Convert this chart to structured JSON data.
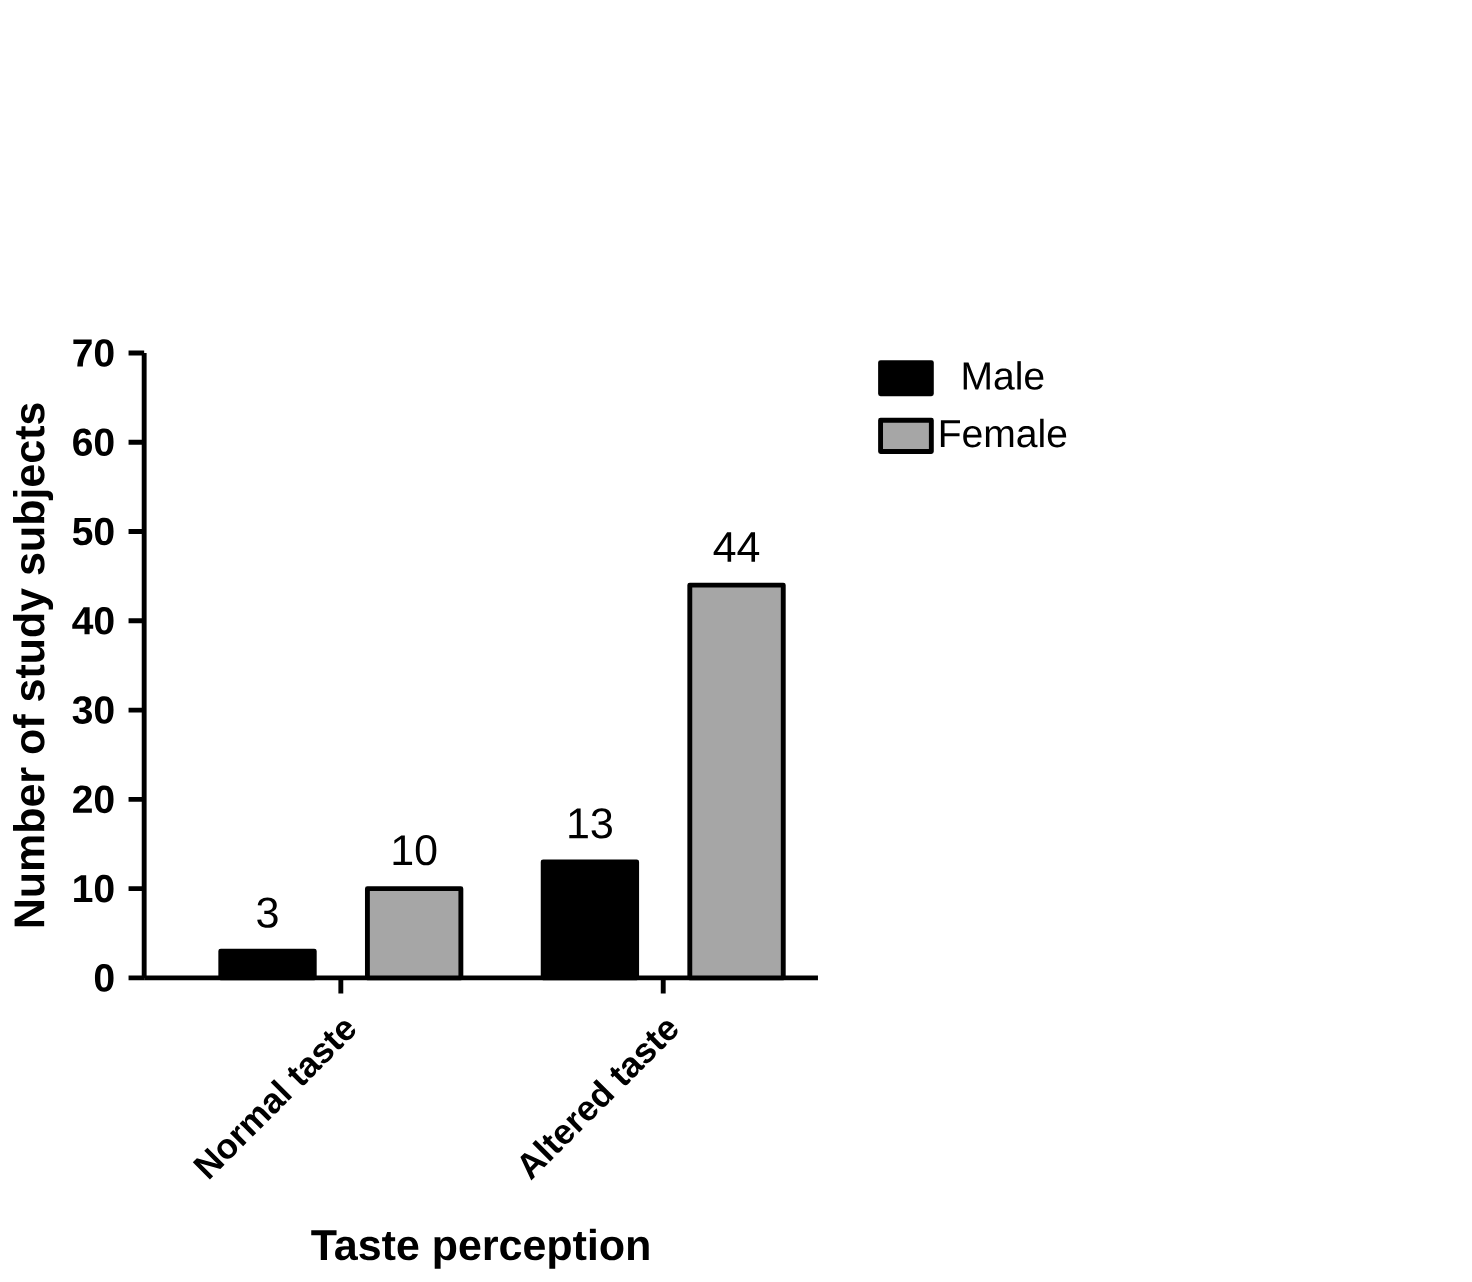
{
  "chart_data": {
    "type": "bar",
    "xlabel": "Taste perception",
    "ylabel": "Number of study subjects",
    "categories": [
      "Normal taste",
      "Altered taste"
    ],
    "series": [
      {
        "name": "Male",
        "color": "#000000",
        "values": [
          3,
          13
        ]
      },
      {
        "name": "Female",
        "color": "#a6a6a6",
        "values": [
          10,
          44
        ]
      }
    ],
    "ylim": [
      0,
      70
    ],
    "yticks": [
      0,
      10,
      20,
      30,
      40,
      50,
      60,
      70
    ],
    "data_labels": true,
    "legend": "top right"
  }
}
